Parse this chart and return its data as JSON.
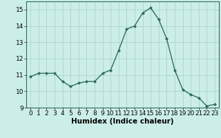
{
  "x": [
    0,
    1,
    2,
    3,
    4,
    5,
    6,
    7,
    8,
    9,
    10,
    11,
    12,
    13,
    14,
    15,
    16,
    17,
    18,
    19,
    20,
    21,
    22,
    23
  ],
  "y": [
    10.9,
    11.1,
    11.1,
    11.1,
    10.6,
    10.3,
    10.5,
    10.6,
    10.6,
    11.1,
    11.3,
    12.5,
    13.8,
    14.0,
    14.8,
    15.1,
    14.4,
    13.2,
    11.3,
    10.1,
    9.8,
    9.6,
    9.1,
    9.2
  ],
  "line_color": "#2e6b5e",
  "marker": "D",
  "marker_size": 2.0,
  "bg_color": "#cceee8",
  "grid_color": "#b0d8d0",
  "xlabel": "Humidex (Indice chaleur)",
  "xlim": [
    -0.5,
    23.5
  ],
  "ylim": [
    9,
    15.5
  ],
  "yticks": [
    9,
    10,
    11,
    12,
    13,
    14,
    15
  ],
  "xticks": [
    0,
    1,
    2,
    3,
    4,
    5,
    6,
    7,
    8,
    9,
    10,
    11,
    12,
    13,
    14,
    15,
    16,
    17,
    18,
    19,
    20,
    21,
    22,
    23
  ],
  "tick_fontsize": 6.5,
  "label_fontsize": 7.5
}
